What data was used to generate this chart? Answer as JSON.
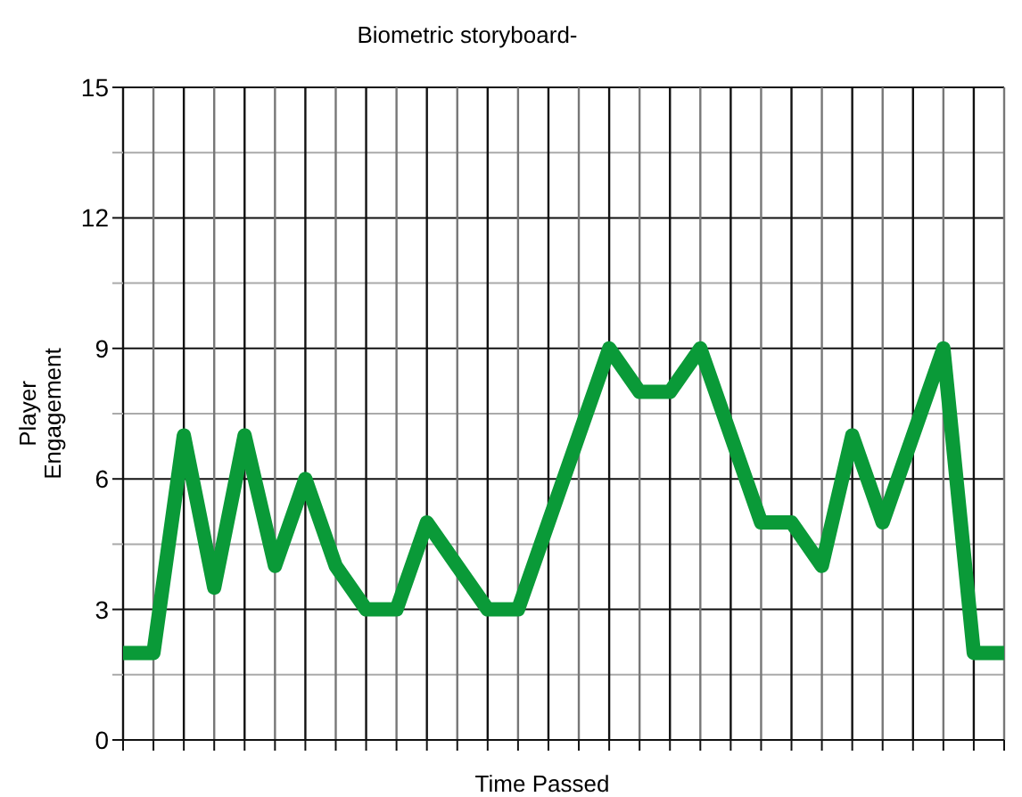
{
  "chart_data": {
    "type": "line",
    "title": "Biometric storyboard-",
    "xlabel": "Time Passed",
    "ylabel": "Player Engagement",
    "categories": [
      null,
      null,
      null,
      null,
      null,
      null,
      null,
      null,
      null,
      null,
      null,
      null,
      null,
      null,
      null,
      null,
      null,
      null,
      null,
      null,
      null,
      null,
      null,
      null,
      null,
      null,
      null,
      null,
      null,
      null
    ],
    "series": [
      {
        "color": "#0a9a38",
        "values": [
          2,
          2,
          7,
          3.5,
          7,
          4,
          6,
          4,
          3,
          3,
          5,
          4,
          3,
          3,
          5,
          7,
          9,
          8,
          8,
          9,
          7,
          5,
          5,
          4,
          7,
          5,
          7,
          9,
          2,
          2
        ]
      }
    ],
    "ylim": [
      0,
      15
    ],
    "yticks": [
      0,
      {
        "value": 1.5,
        "label": null
      },
      3,
      {
        "value": 4.5,
        "label": null
      },
      6,
      {
        "value": 7.5,
        "label": null
      },
      9,
      {
        "value": 10.5,
        "label": null
      },
      12,
      {
        "value": 13.5,
        "label": null
      },
      15
    ],
    "grid": true,
    "marker": "none",
    "line_style": "solid"
  }
}
